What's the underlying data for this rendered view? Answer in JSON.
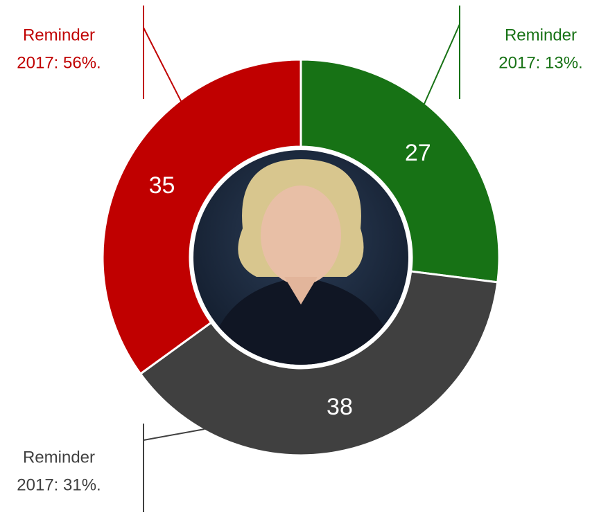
{
  "chart_data": {
    "type": "donut",
    "values": [
      27,
      38,
      35
    ],
    "colors": [
      "#177215",
      "#404040",
      "#c00000"
    ],
    "annotations": [
      {
        "lines": [
          "Reminder",
          "2017: 13%."
        ],
        "color": "#177215"
      },
      {
        "lines": [
          "Reminder",
          "2017: 31%."
        ],
        "color": "#404040"
      },
      {
        "lines": [
          "Reminder",
          "2017: 56%."
        ],
        "color": "#c00000"
      }
    ]
  }
}
